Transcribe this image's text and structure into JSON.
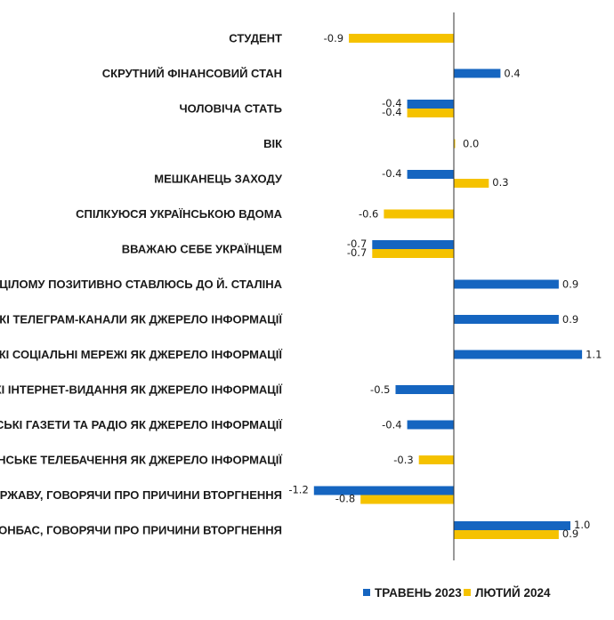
{
  "chart_data": {
    "type": "bar",
    "orientation": "horizontal",
    "categories": [
      "СТУДЕНТ",
      "СКРУТНИЙ ФІНАНСОВИЙ СТАН",
      "ЧОЛОВІЧА СТАТЬ",
      "ВІК",
      "МЕШКАНЕЦЬ ЗАХОДУ",
      "СПІЛКУЮСЯ УКРАЇНСЬКОЮ ВДОМА",
      "ВВАЖАЮ СЕБЕ УКРАЇНЦЕМ",
      "В ЦІЛОМУ ПОЗИТИВНО СТАВЛЮСЬ ДО Й. СТАЛІНА",
      "РОСІЙСЬКІ ТЕЛЕГРАМ-КАНАЛИ ЯК ДЖЕРЕЛО ІНФОРМАЦІЇ",
      "РОСІЙСЬКІ СОЦІАЛЬНІ МЕРЕЖІ ЯК ДЖЕРЕЛО ІНФОРМАЦІЇ",
      "УКРАЇНСЬКІ ІНТЕРНЕТ-ВИДАННЯ ЯК ДЖЕРЕЛО ІНФОРМАЦІЇ",
      "УКРАЇНСЬКІ ГАЗЕТИ ТА РАДІО ЯК ДЖЕРЕЛО ІНФОРМАЦІЇ",
      "УКРАЇНСЬКЕ ТЕЛЕБАЧЕННЯ ЯК ДЖЕРЕЛО ІНФОРМАЦІЇ",
      "ЗГАДАВ ДЕРЖАВУ, ГОВОРЯЧИ ПРО ПРИЧИНИ ВТОРГНЕННЯ",
      "ЗГАДАВ ДОНБАС, ГОВОРЯЧИ ПРО ПРИЧИНИ ВТОРГНЕННЯ"
    ],
    "series": [
      {
        "name": "ТРАВЕНЬ 2023",
        "color": "#1565C0",
        "values": [
          null,
          0.4,
          -0.4,
          null,
          -0.4,
          null,
          -0.7,
          0.9,
          0.9,
          1.1,
          -0.5,
          -0.4,
          null,
          -1.2,
          1.0
        ],
        "labels": [
          null,
          "0.4",
          "-0.4",
          null,
          "-0.4",
          null,
          "-0.7",
          "0.9",
          "0.9",
          "1.1",
          "-0.5",
          "-0.4",
          null,
          "-1.2",
          "1.0"
        ]
      },
      {
        "name": "ЛЮТИЙ 2024",
        "color": "#F5C200",
        "values": [
          -0.9,
          null,
          -0.4,
          0.0,
          0.3,
          -0.6,
          -0.7,
          null,
          null,
          null,
          null,
          null,
          -0.3,
          -0.8,
          0.9
        ],
        "labels": [
          "-0.9",
          null,
          "-0.4",
          "0.0",
          "0.3",
          "-0.6",
          "-0.7",
          null,
          null,
          null,
          null,
          null,
          "-0.3",
          "-0.8",
          "0.9"
        ]
      }
    ],
    "title": "",
    "xlabel": "",
    "ylabel": "",
    "xlim": [
      -1.2,
      1.2
    ],
    "grid": false,
    "legend_position": "bottom-center"
  }
}
